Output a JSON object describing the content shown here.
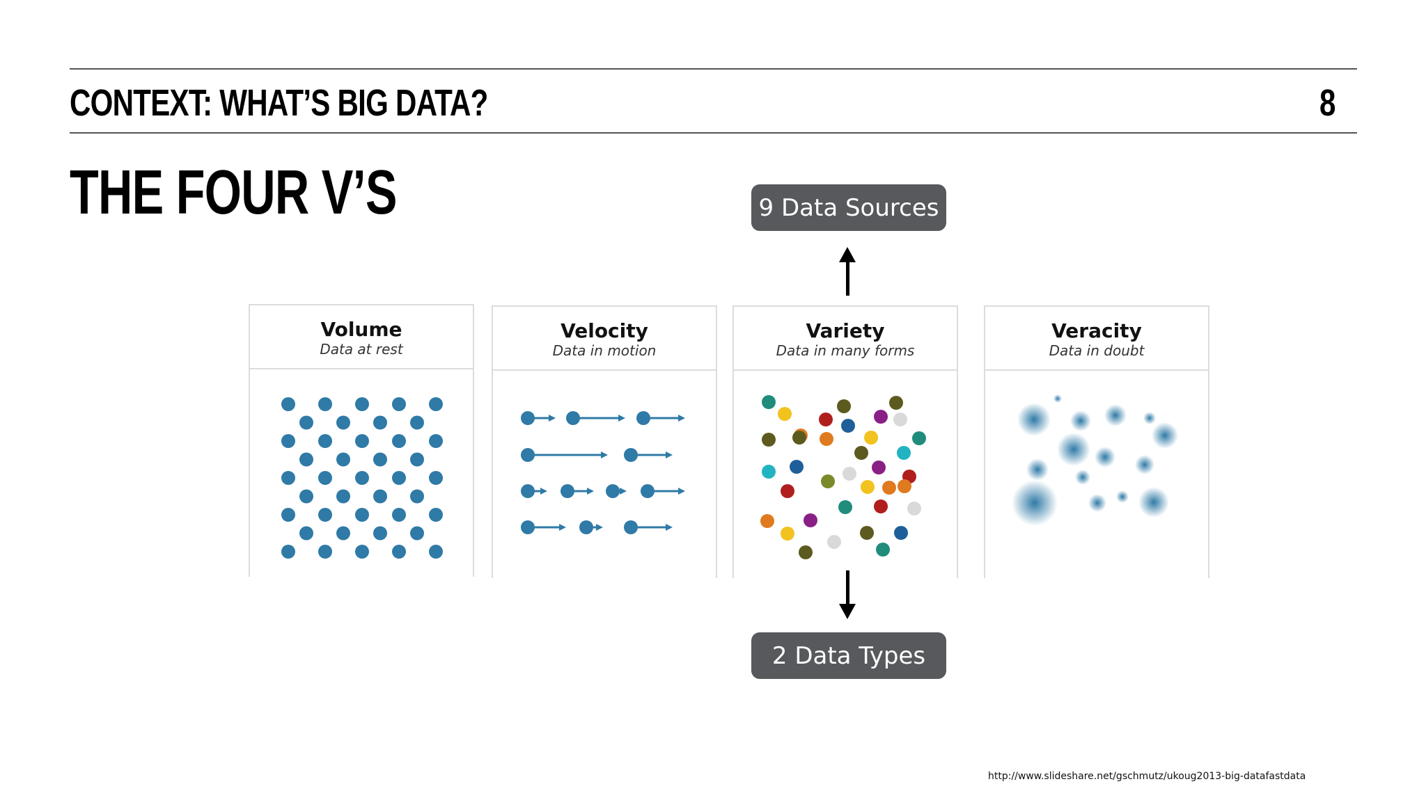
{
  "header": {
    "section_title": "CONTEXT: WHAT’S BIG DATA?",
    "page_number": "8"
  },
  "slide": {
    "title": "THE FOUR V’S"
  },
  "callouts": {
    "top": "9 Data Sources",
    "bottom": "2 Data Types"
  },
  "panels": [
    {
      "title": "Volume",
      "subtitle": "Data at rest"
    },
    {
      "title": "Velocity",
      "subtitle": "Data in motion"
    },
    {
      "title": "Variety",
      "subtitle": "Data in many forms"
    },
    {
      "title": "Veracity",
      "subtitle": "Data in doubt"
    }
  ],
  "colors": {
    "dot_blue": "#2f7aa6",
    "pill_bg": "#57595c",
    "variety_palette": [
      "#1f8c7c",
      "#f2c21f",
      "#5c5a1e",
      "#b01e1e",
      "#1f5f99",
      "#8a1f86",
      "#d9d9d9",
      "#e07a1f",
      "#22b3c2",
      "#7a8a2a"
    ]
  },
  "footer": {
    "source": "http://www.slideshare.net/gschmutz/ukoug2013-big-datafastdata"
  }
}
